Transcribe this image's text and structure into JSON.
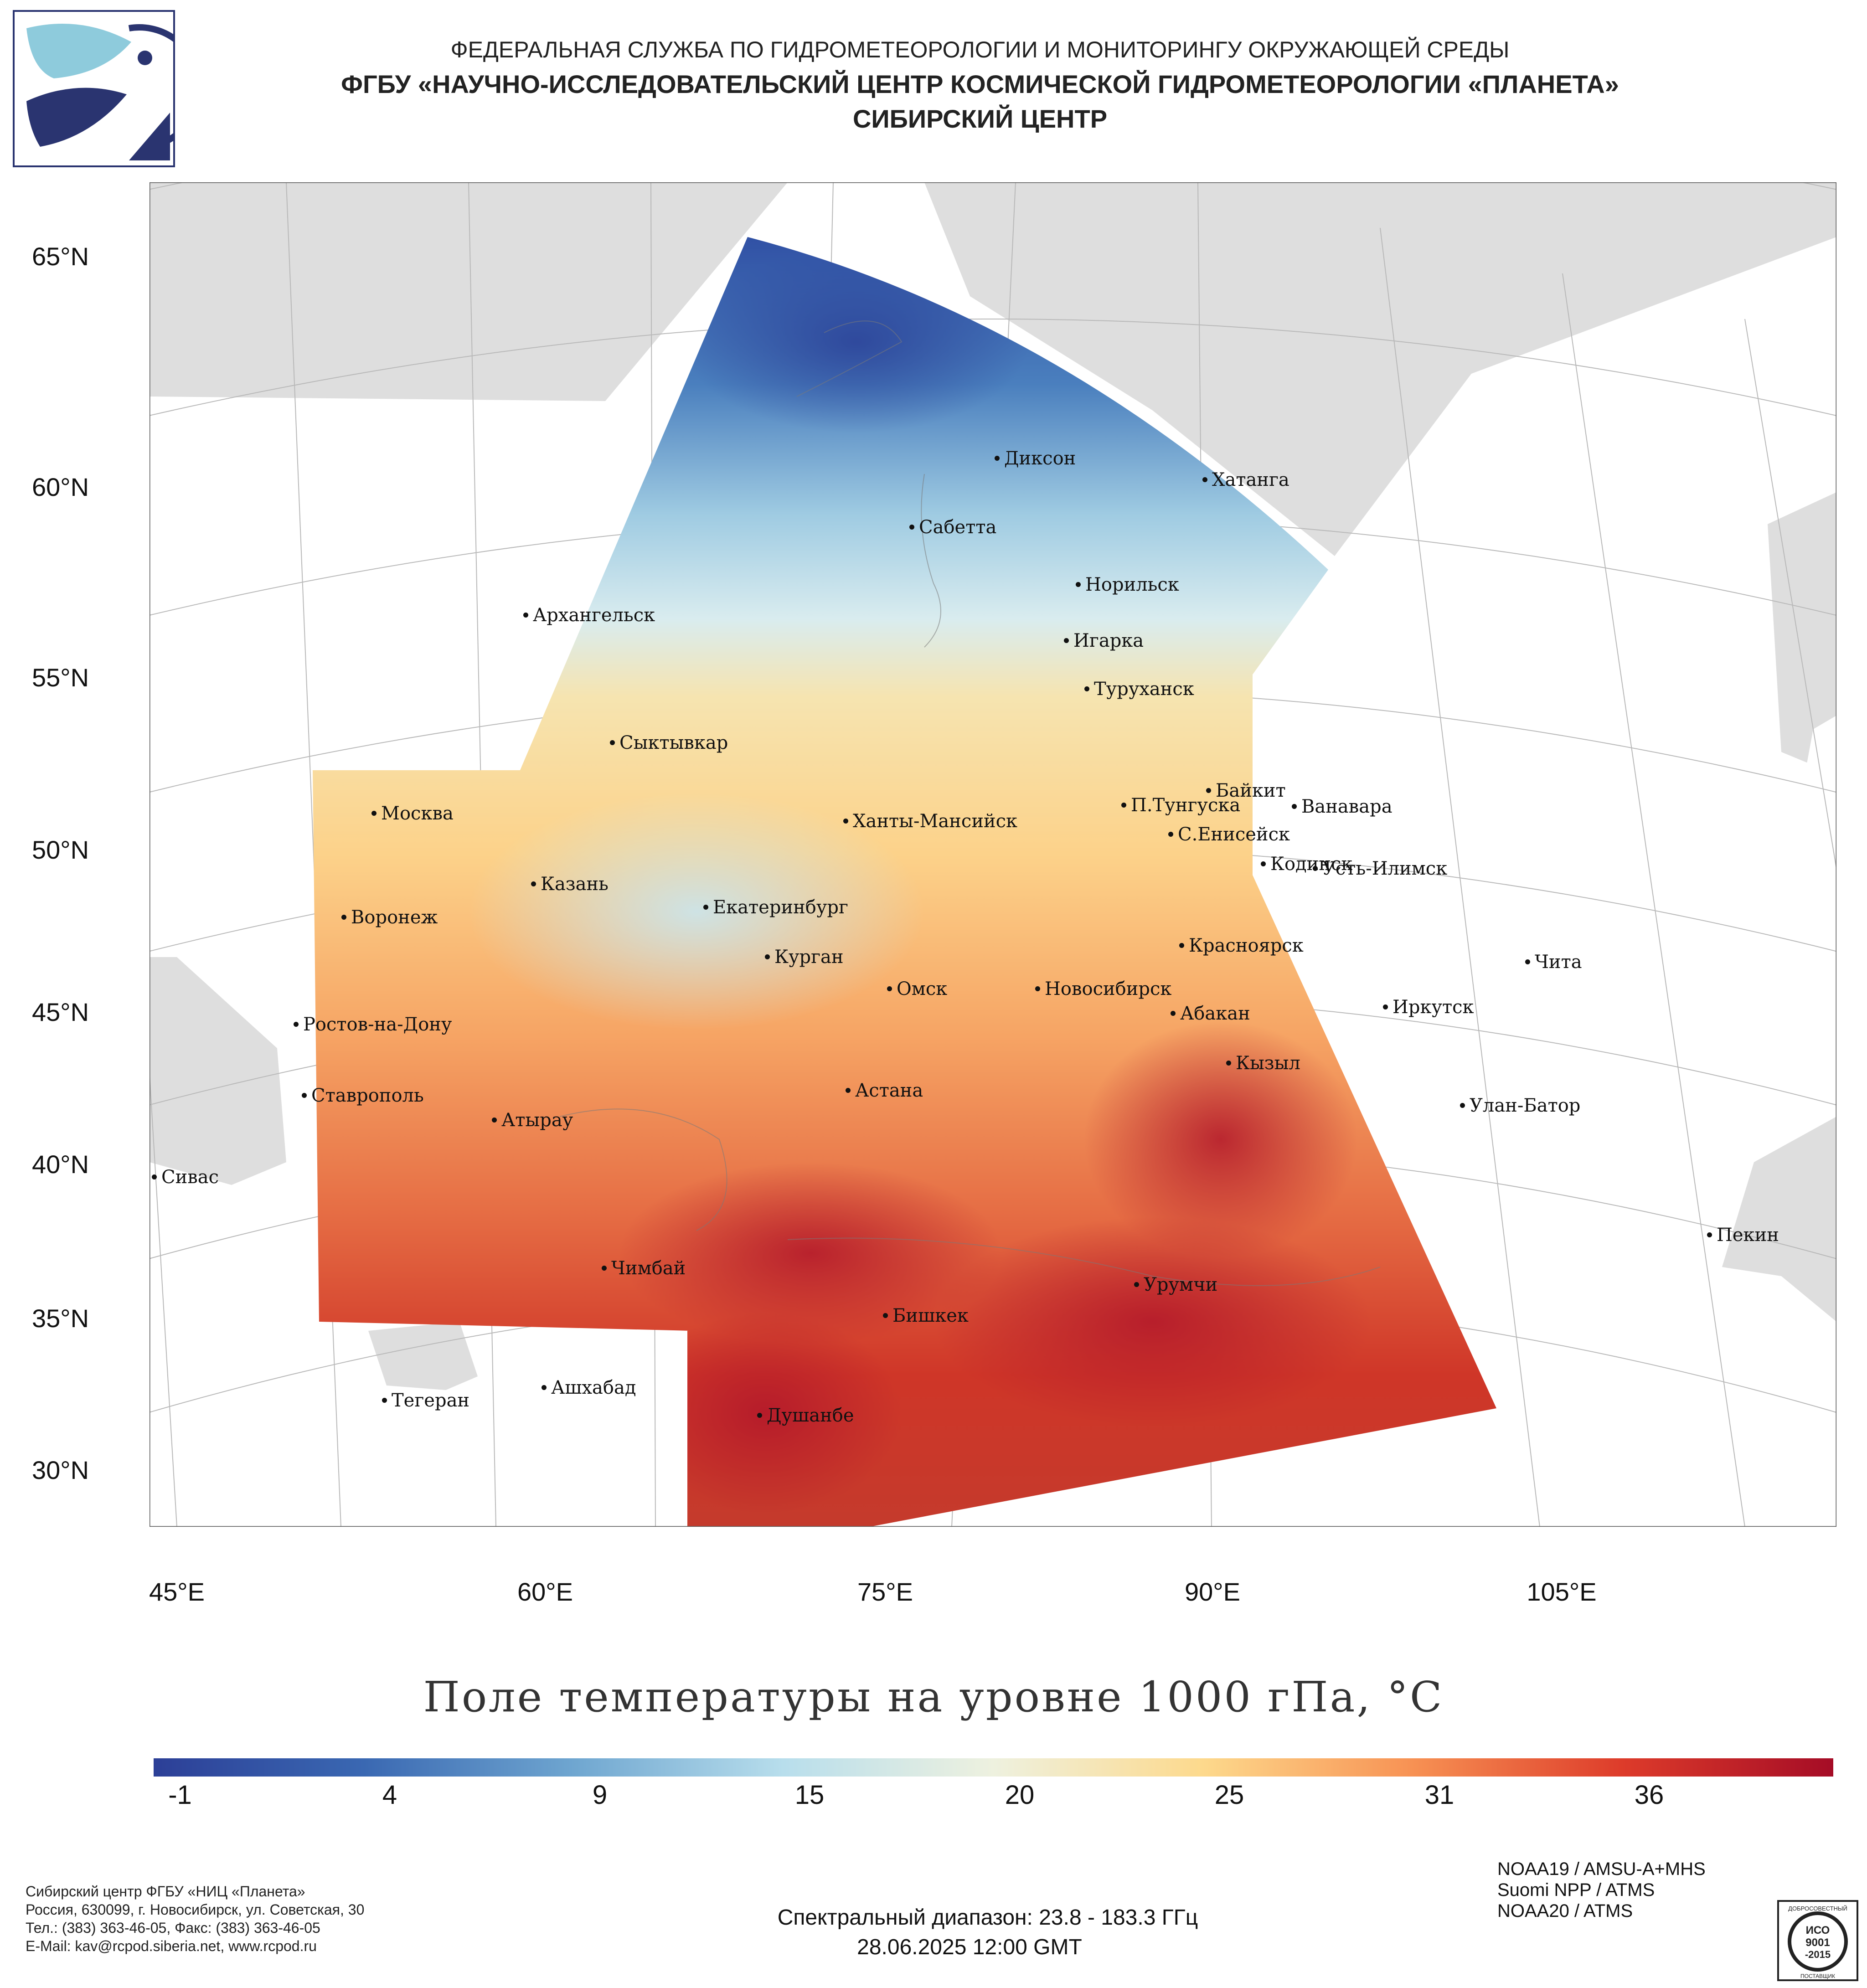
{
  "header": {
    "line1": "ФЕДЕРАЛЬНАЯ СЛУЖБА ПО ГИДРОМЕТЕОРОЛОГИИ И МОНИТОРИНГУ ОКРУЖАЮЩЕЙ СРЕДЫ",
    "line2": "ФГБУ «НАУЧНО-ИССЛЕДОВАТЕЛЬСКИЙ ЦЕНТР КОСМИЧЕСКОЙ ГИДРОМЕТЕОРОЛОГИИ «ПЛАНЕТА»",
    "line3": "СИБИРСКИЙ ЦЕНТР"
  },
  "map": {
    "lat_labels": [
      "65°N",
      "60°N",
      "55°N",
      "50°N",
      "45°N",
      "40°N",
      "35°N",
      "30°N"
    ],
    "lon_labels": [
      "45°E",
      "60°E",
      "75°E",
      "90°E",
      "105°E"
    ],
    "cities": [
      "Диксон",
      "Хатанга",
      "Сабетта",
      "Норильск",
      "Игарка",
      "Туруханск",
      "Архангельск",
      "Сыктывкар",
      "Байкит",
      "Москва",
      "П.Тунгуска",
      "Ванавара",
      "Ханты-Мансийск",
      "С.Енисейск",
      "Кодинск",
      "Усть-Илимск",
      "Казань",
      "Екатеринбург",
      "Воронеж",
      "Красноярск",
      "Курган",
      "Чита",
      "Омск",
      "Новосибирск",
      "Иркутск",
      "Ростов-на-Дону",
      "Абакан",
      "Кызыл",
      "Астана",
      "Ставрополь",
      "Улан-Батор",
      "Атырау",
      "Сивас",
      "Пекин",
      "Чимбай",
      "Урумчи",
      "Бишкек",
      "Ашхабад",
      "Тегеран",
      "Душанбе"
    ]
  },
  "legend": {
    "title": "Поле температуры на уровне 1000 гПа, °C",
    "ticks": [
      "-1",
      "4",
      "9",
      "15",
      "20",
      "25",
      "31",
      "36"
    ],
    "colors": [
      "#2c3f97",
      "#3a68b2",
      "#6fa6d0",
      "#b8deec",
      "#eef1df",
      "#fdd98c",
      "#f79153",
      "#dd3b2a",
      "#a50c26"
    ]
  },
  "footer": {
    "org_lines": [
      "Сибирский центр ФГБУ «НИЦ «Планета»",
      "Россия, 630099, г. Новосибирск, ул. Советская, 30",
      "Тел.: (383) 363-46-05, Факс: (383) 363-46-05",
      "E-Mail: kav@rcpod.siberia.net, www.rcpod.ru"
    ],
    "spectral": "Спектральный диапазон: 23.8 - 183.3 ГГц",
    "datetime": "28.06.2025 12:00 GMT",
    "satellites": [
      "NOAA19 / AMSU-A+MHS",
      "Suomi NPP / ATMS",
      "NOAA20 / ATMS"
    ],
    "badge_top": "ДОБРОСОВЕСТНЫЙ",
    "badge_lines": [
      "ИСО",
      "9001",
      "-2015"
    ],
    "badge_bottom": "ПОСТАВЩИК"
  }
}
